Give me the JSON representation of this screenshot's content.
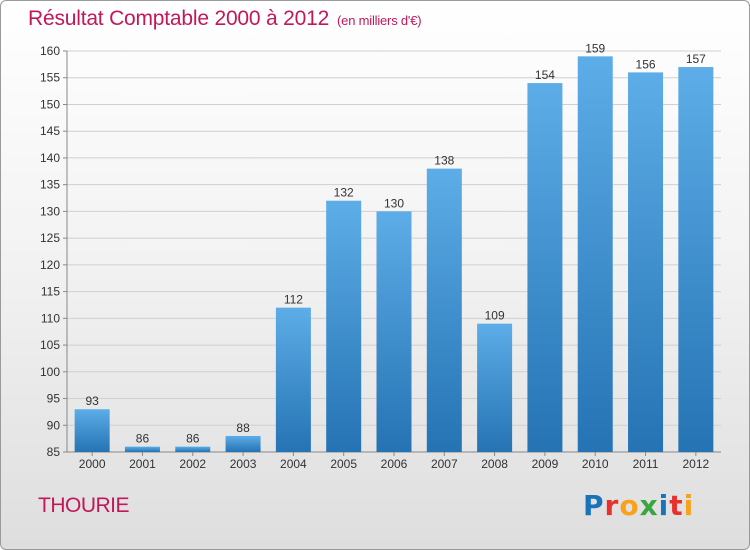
{
  "header": {
    "title": "Résultat Comptable 2000 à 2012",
    "subtitle": "(en milliers d'€)"
  },
  "footer": {
    "commune": "THOURIE",
    "logo_text": "Proxiti",
    "logo_letters": [
      {
        "ch": "P",
        "color": "#1a73b8"
      },
      {
        "ch": "r",
        "color": "#e8312f"
      },
      {
        "ch": "o",
        "color": "#f7a21b"
      },
      {
        "ch": "x",
        "color": "#3aa63f"
      },
      {
        "ch": "i",
        "color": "#1a73b8"
      },
      {
        "ch": "t",
        "color": "#e8312f"
      },
      {
        "ch": "i",
        "color": "#f7a21b"
      }
    ]
  },
  "chart_data": {
    "type": "bar",
    "title": "Résultat Comptable 2000 à 2012",
    "subtitle": "(en milliers d'€)",
    "xlabel": "",
    "ylabel": "",
    "categories": [
      "2000",
      "2001",
      "2002",
      "2003",
      "2004",
      "2005",
      "2006",
      "2007",
      "2008",
      "2009",
      "2010",
      "2011",
      "2012"
    ],
    "values": [
      93,
      86,
      86,
      88,
      112,
      132,
      130,
      138,
      109,
      154,
      159,
      156,
      157
    ],
    "ylim": [
      85,
      160
    ],
    "yticks": [
      85,
      90,
      95,
      100,
      105,
      110,
      115,
      120,
      125,
      130,
      135,
      140,
      145,
      150,
      155,
      160
    ],
    "grid": true,
    "colors": {
      "bar_top": "#5dade8",
      "bar_bottom": "#2573b3",
      "grid": "#d0d0d0",
      "axis": "#888888"
    }
  }
}
